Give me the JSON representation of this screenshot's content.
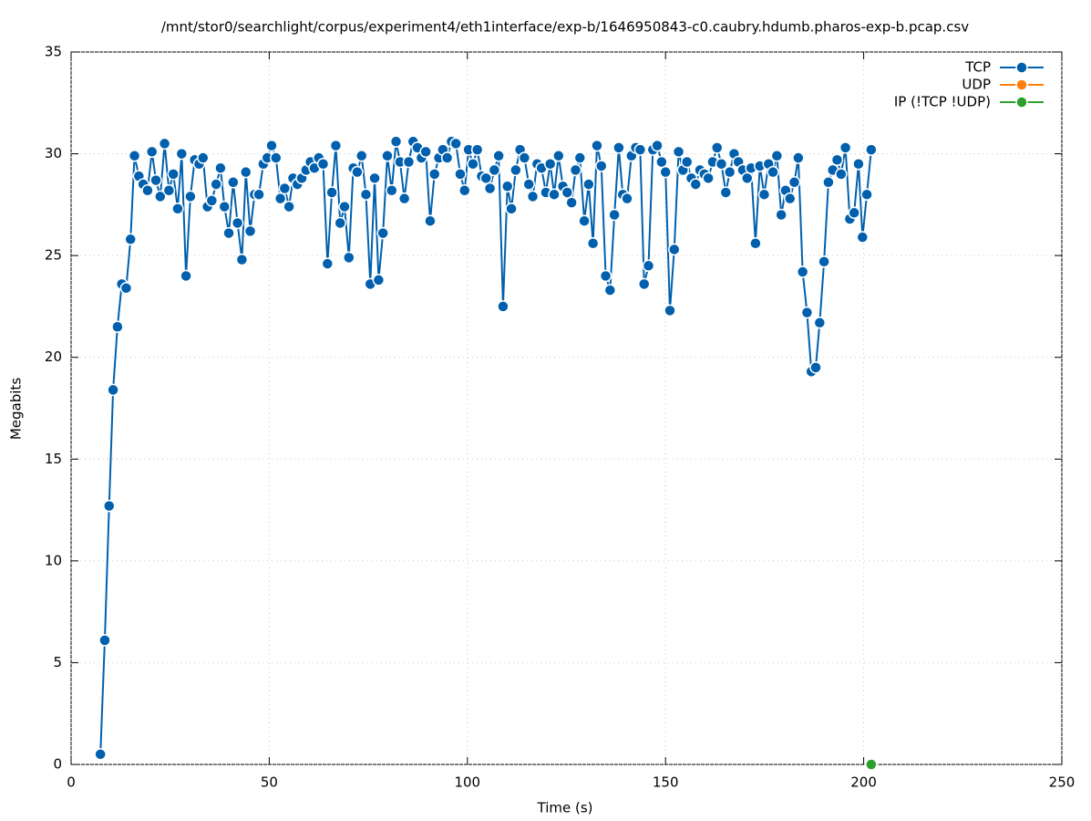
{
  "chart_data": {
    "type": "line",
    "title": "/mnt/stor0/searchlight/corpus/experiment4/eth1interface/exp-b/1646950843-c0.caubry.hdumb.pharos-exp-b.pcap.csv",
    "x_label": "Time (s)",
    "y_label": "Megabits",
    "xlim": [
      0,
      250
    ],
    "xticks": [
      0,
      50,
      100,
      150,
      200,
      250
    ],
    "ylim": [
      0,
      35
    ],
    "yticks": [
      0,
      5,
      10,
      15,
      20,
      25,
      30,
      35
    ],
    "grid": true,
    "legend": "top-right",
    "series": [
      {
        "name": "TCP",
        "color": "#0060ad",
        "x": [
          7.4,
          8.5,
          9.6,
          10.6,
          11.7,
          12.8,
          13.9,
          15.0,
          16.0,
          17.1,
          18.2,
          19.3,
          20.4,
          21.4,
          22.5,
          23.6,
          24.7,
          25.8,
          26.9,
          27.9,
          29.0,
          30.1,
          31.2,
          32.3,
          33.3,
          34.4,
          35.5,
          36.6,
          37.7,
          38.7,
          39.8,
          40.9,
          42.0,
          43.1,
          44.1,
          45.2,
          46.3,
          47.4,
          48.5,
          49.5,
          50.6,
          51.7,
          52.8,
          53.9,
          55.0,
          56.0,
          57.1,
          58.2,
          59.3,
          60.4,
          61.4,
          62.5,
          63.6,
          64.7,
          65.8,
          66.8,
          67.9,
          69.0,
          70.1,
          71.2,
          72.2,
          73.3,
          74.4,
          75.5,
          76.6,
          77.6,
          78.7,
          79.8,
          80.9,
          82.0,
          83.0,
          84.1,
          85.2,
          86.3,
          87.4,
          88.4,
          89.5,
          90.6,
          91.7,
          92.8,
          93.8,
          94.9,
          96.0,
          97.1,
          98.2,
          99.3,
          100.3,
          101.4,
          102.5,
          103.6,
          104.7,
          105.7,
          106.8,
          107.9,
          109.0,
          110.1,
          111.1,
          112.2,
          113.3,
          114.4,
          115.5,
          116.5,
          117.6,
          118.7,
          119.8,
          120.9,
          121.9,
          123.0,
          124.1,
          125.2,
          126.3,
          127.3,
          128.4,
          129.5,
          130.6,
          131.7,
          132.7,
          133.8,
          134.9,
          136.0,
          137.1,
          138.2,
          139.2,
          140.3,
          141.4,
          142.5,
          143.6,
          144.6,
          145.7,
          146.8,
          147.9,
          149.0,
          150.0,
          151.1,
          152.2,
          153.3,
          154.4,
          155.4,
          156.5,
          157.6,
          158.7,
          159.8,
          160.8,
          161.9,
          163.0,
          164.1,
          165.2,
          166.2,
          167.3,
          168.4,
          169.5,
          170.6,
          171.6,
          172.7,
          173.8,
          174.9,
          176.0,
          177.1,
          178.1,
          179.2,
          180.3,
          181.4,
          182.5,
          183.5,
          184.6,
          185.7,
          186.8,
          187.9,
          188.9,
          190.0,
          191.1,
          192.2,
          193.3,
          194.3,
          195.4,
          196.5,
          197.6,
          198.7,
          199.7,
          200.8,
          201.9
        ],
        "values": [
          0.5,
          6.1,
          12.7,
          18.4,
          21.5,
          23.6,
          23.4,
          25.8,
          29.9,
          28.9,
          28.5,
          28.2,
          30.1,
          28.7,
          27.9,
          30.5,
          28.2,
          29.0,
          27.3,
          30.0,
          24.0,
          27.9,
          29.7,
          29.5,
          29.8,
          27.4,
          27.7,
          28.5,
          29.3,
          27.4,
          26.1,
          28.6,
          26.6,
          24.8,
          29.1,
          26.2,
          28.0,
          28.0,
          29.5,
          29.8,
          30.4,
          29.8,
          27.8,
          28.3,
          27.4,
          28.8,
          28.5,
          28.8,
          29.2,
          29.6,
          29.3,
          29.8,
          29.5,
          24.6,
          28.1,
          30.4,
          26.6,
          27.4,
          24.9,
          29.3,
          29.1,
          29.9,
          28.0,
          23.6,
          28.8,
          23.8,
          26.1,
          29.9,
          28.2,
          30.6,
          29.6,
          27.8,
          29.6,
          30.6,
          30.3,
          29.8,
          30.1,
          26.7,
          29.0,
          29.8,
          30.2,
          29.8,
          30.6,
          30.5,
          29.0,
          28.2,
          30.2,
          29.5,
          30.2,
          28.9,
          28.8,
          28.3,
          29.2,
          29.9,
          22.5,
          28.4,
          27.3,
          29.2,
          30.2,
          29.8,
          28.5,
          27.9,
          29.5,
          29.3,
          28.1,
          29.5,
          28.0,
          29.9,
          28.4,
          28.1,
          27.6,
          29.2,
          29.8,
          26.7,
          28.5,
          25.6,
          30.4,
          29.4,
          24.0,
          23.3,
          27.0,
          30.3,
          28.0,
          27.8,
          29.9,
          30.3,
          30.2,
          23.6,
          24.5,
          30.2,
          30.4,
          29.6,
          29.1,
          22.3,
          25.3,
          30.1,
          29.2,
          29.6,
          28.8,
          28.5,
          29.2,
          29.0,
          28.8,
          29.6,
          30.3,
          29.5,
          28.1,
          29.1,
          30.0,
          29.6,
          29.2,
          28.8,
          29.3,
          25.6,
          29.4,
          28.0,
          29.5,
          29.1,
          29.9,
          27.0,
          28.2,
          27.8,
          28.6,
          29.8,
          24.2,
          22.2,
          19.3,
          19.5,
          21.7,
          24.7,
          28.6,
          29.2,
          29.7,
          29.0,
          30.3,
          26.8,
          27.1,
          29.5,
          25.9,
          28.0,
          30.2
        ]
      },
      {
        "name": "UDP",
        "color": "#ff7f0e",
        "x": [],
        "values": []
      },
      {
        "name": "IP (!TCP  !UDP)",
        "color": "#2ca02c",
        "x": [
          201.9
        ],
        "values": [
          0
        ]
      }
    ]
  }
}
